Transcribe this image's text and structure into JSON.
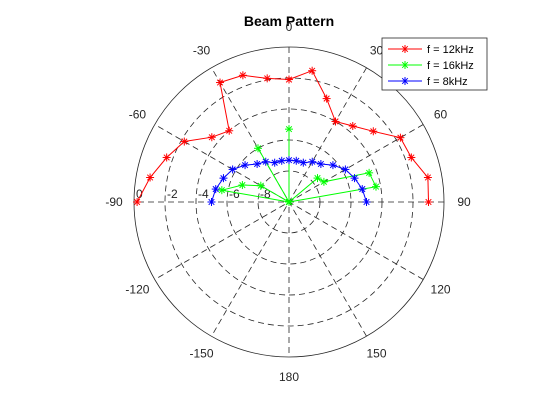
{
  "chart_data": {
    "type": "polar-line",
    "title": "Beam Pattern",
    "theta_direction": "clockwise",
    "theta_zero": "top",
    "theta_ticks": [
      0,
      30,
      60,
      90,
      120,
      150,
      180,
      -150,
      -120,
      -90,
      -60,
      -30
    ],
    "r_ticks": [
      -8,
      -6,
      -4,
      -2,
      0
    ],
    "r_tick_labels": [
      "-8",
      "-6",
      "-4",
      "-2",
      "0"
    ],
    "rlim": [
      -10,
      0
    ],
    "grid": true,
    "legend": "top-right",
    "series": [
      {
        "name": "f = 12kHz",
        "color": "#ff0000",
        "theta": [
          -90,
          -80,
          -70,
          -60,
          -50,
          -40,
          -30,
          -20,
          -10,
          0,
          10,
          20,
          30,
          40,
          50,
          60,
          70,
          80,
          90
        ],
        "r": [
          -0.2,
          -0.9,
          -1.6,
          -2.2,
          -3.5,
          -4.0,
          -1.1,
          -1.3,
          -1.9,
          -2.1,
          -1.4,
          -2.9,
          -4.0,
          -3.6,
          -2.9,
          -1.7,
          -1.6,
          -0.9,
          -1.0
        ]
      },
      {
        "name": "f = 16kHz",
        "color": "#00ff00",
        "theta": [
          -90,
          -80,
          -70,
          -60,
          -50,
          -40,
          -30,
          -20,
          -10,
          0,
          10,
          20,
          30,
          40,
          50,
          60,
          70,
          80,
          90
        ],
        "r": [
          -10,
          -5.6,
          -6.8,
          -7.9,
          -10,
          -10,
          -6.0,
          -10,
          -10,
          -5.3,
          -10,
          -10,
          -10,
          -10,
          -7.6,
          -7.4,
          -4.5,
          -4.3,
          -10
        ]
      },
      {
        "name": "f = 8kHz",
        "color": "#0000ff",
        "theta": [
          -90,
          -80,
          -70,
          -60,
          -50,
          -40,
          -30,
          -20,
          -10,
          0,
          10,
          20,
          30,
          40,
          50,
          60,
          70,
          80,
          90
        ],
        "r": [
          -5.0,
          -5.2,
          -5.5,
          -5.8,
          -6.3,
          -6.8,
          -7.0,
          -7.3,
          -7.3,
          -7.3,
          -7.3,
          -7.3,
          -7.0,
          -6.8,
          -6.3,
          -5.8,
          -5.5,
          -5.2,
          -5.0
        ]
      }
    ]
  }
}
